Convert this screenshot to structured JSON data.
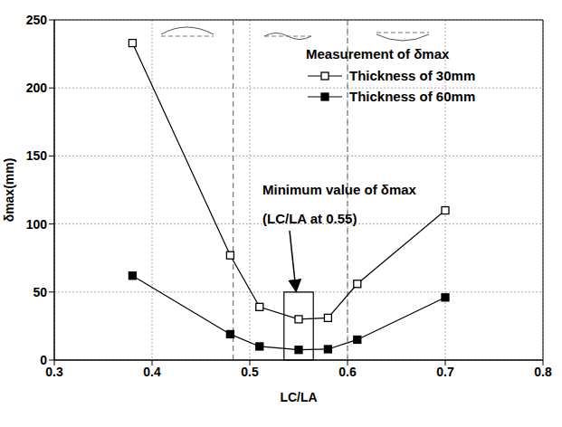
{
  "chart_data": {
    "type": "line",
    "x_label": "LC/LA",
    "y_label": "δmax(mm)",
    "x": [
      0.38,
      0.48,
      0.51,
      0.55,
      0.58,
      0.61,
      0.7
    ],
    "series": [
      {
        "name": "Thickness of 30mm",
        "color": "#000000",
        "marker": "square-open",
        "values": [
          233,
          77,
          39,
          30,
          31,
          56,
          110
        ]
      },
      {
        "name": "Thickness of 60mm",
        "color": "#000000",
        "marker": "square",
        "values": [
          62,
          19,
          10,
          7.5,
          8,
          15,
          46
        ]
      }
    ],
    "legend_title": "Measurement of δmax",
    "legend": "upper right",
    "xlim": [
      0.3,
      0.8
    ],
    "xticks": [
      0.3,
      0.4,
      0.5,
      0.6,
      0.7,
      0.8
    ],
    "ylim": [
      0,
      250
    ],
    "yticks": [
      0,
      50,
      100,
      150,
      200,
      250
    ],
    "grid": true,
    "vlines": [
      0.483,
      0.6
    ],
    "annotation": [
      "Minimum value of δmax",
      "(LC/LA at 0.55)"
    ],
    "highlight_x": [
      0.535,
      0.565
    ],
    "highlight_y": [
      0,
      50
    ]
  }
}
